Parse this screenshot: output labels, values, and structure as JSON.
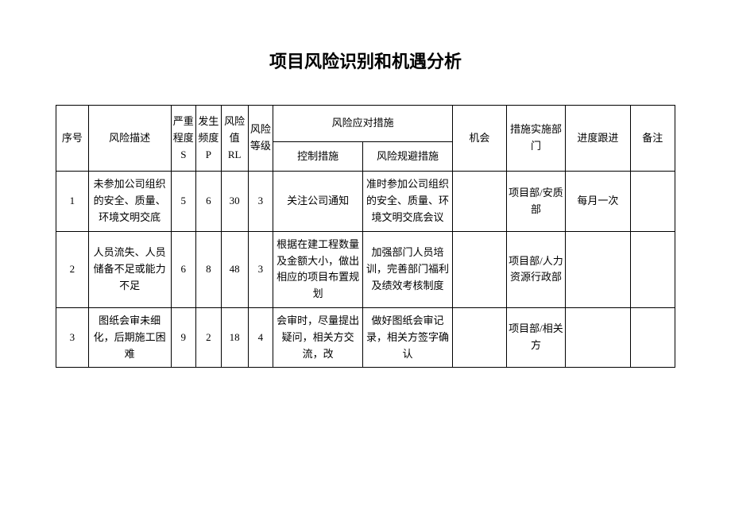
{
  "title": "项目风险识别和机遇分析",
  "headers": {
    "seq": "序号",
    "desc": "风险描述",
    "severity": "严重程度S",
    "frequency": "发生频度P",
    "risk_value": "风险值RL",
    "risk_level": "风险等级",
    "countermeasures": "风险应对措施",
    "control": "控制措施",
    "avoidance": "风险规避措施",
    "opportunity": "机会",
    "department": "措施实施部门",
    "progress": "进度跟进",
    "notes": "备注"
  },
  "rows": [
    {
      "seq": "1",
      "desc": "未参加公司组织的安全、质量、环境文明交底",
      "s": "5",
      "p": "6",
      "rl": "30",
      "level": "3",
      "control": "关注公司通知",
      "avoidance": "准时参加公司组织的安全、质量、环境文明交底会议",
      "opportunity": "",
      "department": "项目部/安质部",
      "progress": "每月一次",
      "notes": ""
    },
    {
      "seq": "2",
      "desc": "人员流失、人员储备不足或能力不足",
      "s": "6",
      "p": "8",
      "rl": "48",
      "level": "3",
      "control": "根据在建工程数量及金额大小，做出相应的项目布置规划",
      "avoidance": "加强部门人员培训，完善部门福利及绩效考核制度",
      "opportunity": "",
      "department": "项目部/人力资源行政部",
      "progress": "",
      "notes": ""
    },
    {
      "seq": "3",
      "desc": "图纸会审未细化，后期施工困难",
      "s": "9",
      "p": "2",
      "rl": "18",
      "level": "4",
      "control": "会审时，尽量提出疑问，相关方交流，改",
      "avoidance": "做好图纸会审记录，相关方签字确认",
      "opportunity": "",
      "department": "项目部/相关方",
      "progress": "",
      "notes": ""
    }
  ]
}
